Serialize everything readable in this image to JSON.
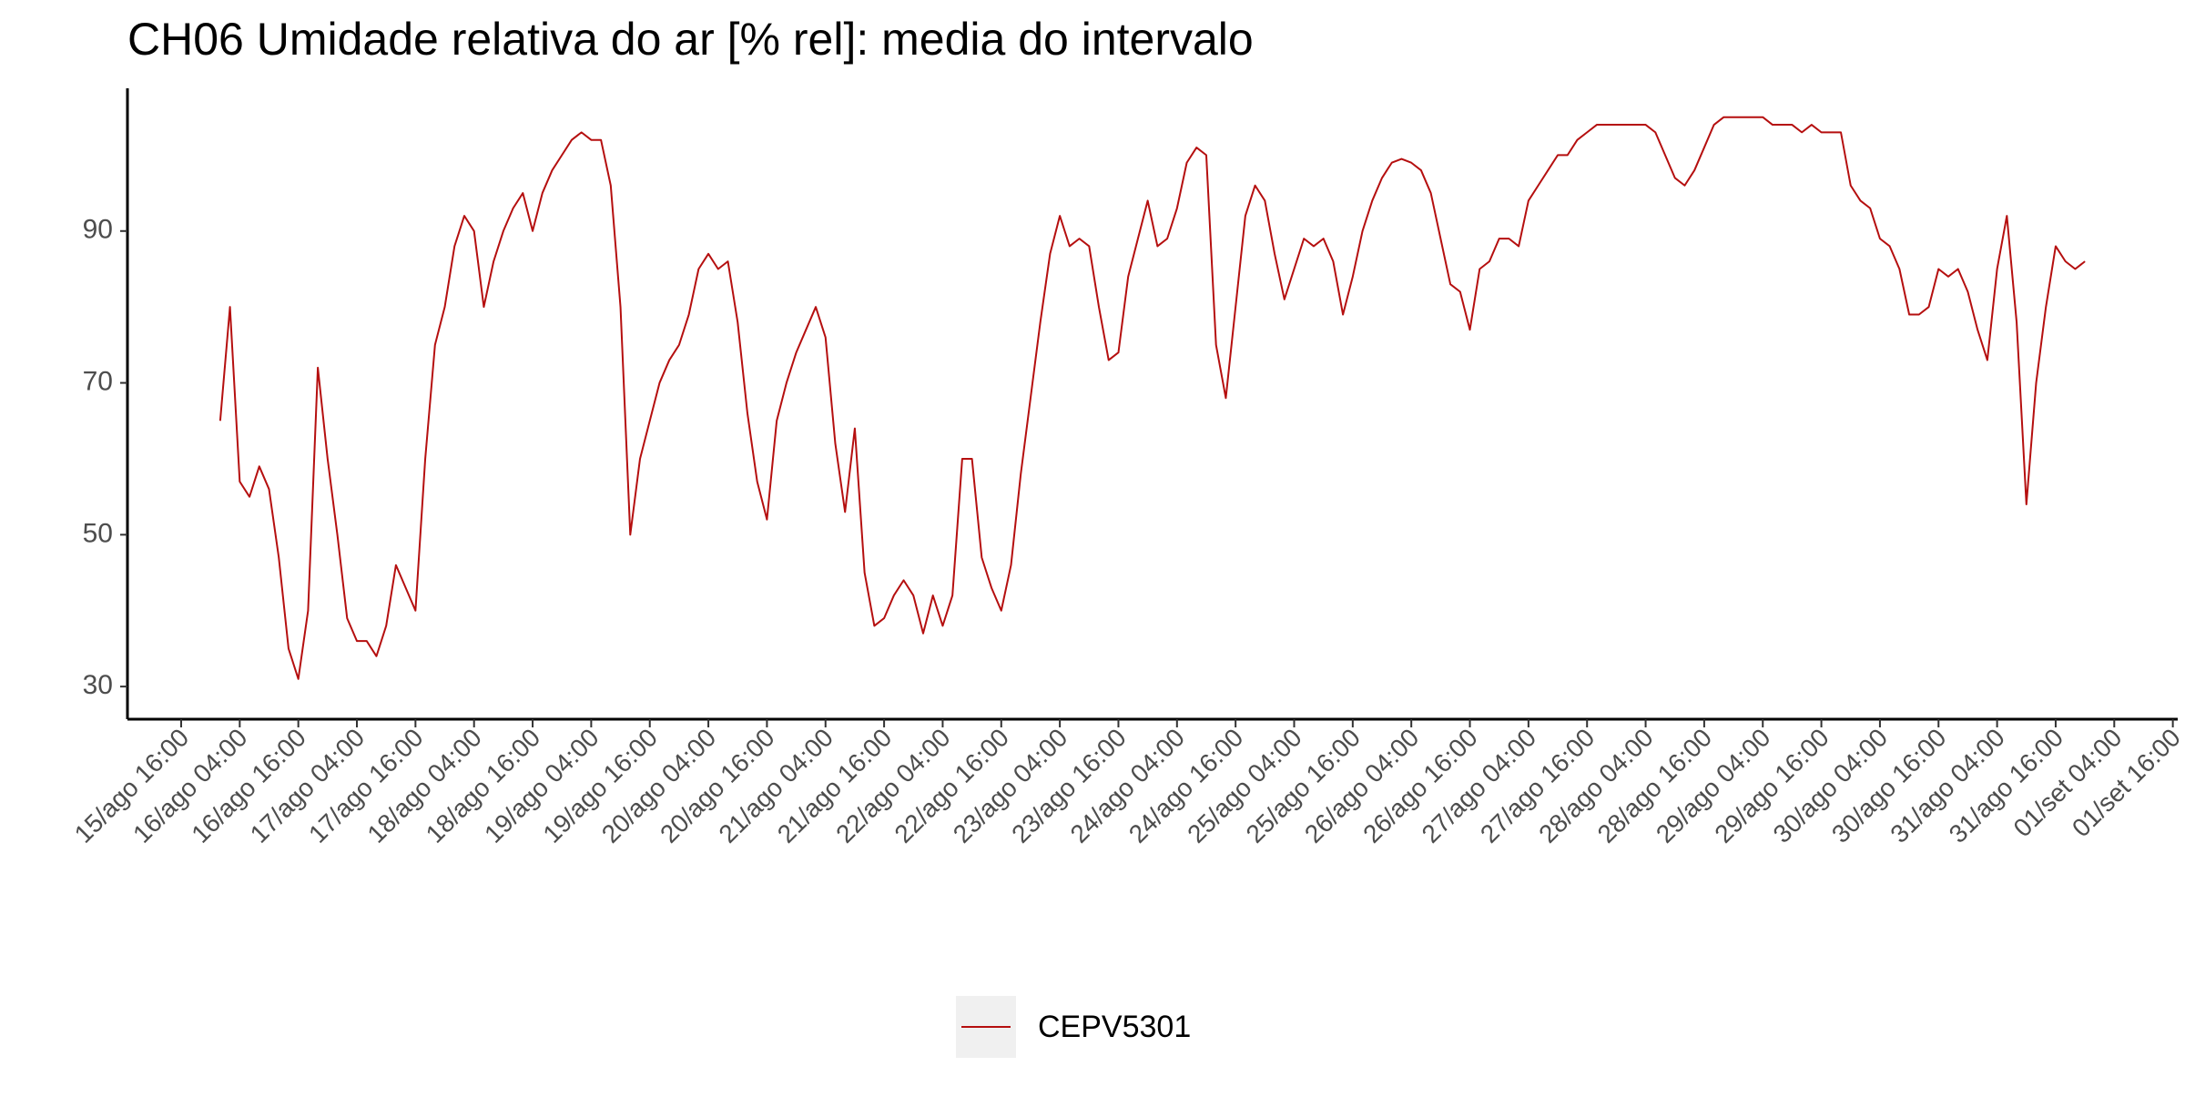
{
  "chart_data": {
    "type": "line",
    "title": "CH06 Umidade relativa do ar [% rel]: media do intervalo",
    "x": [
      "16/ago 00:00",
      "16/ago 02:00",
      "16/ago 04:00",
      "16/ago 06:00",
      "16/ago 08:00",
      "16/ago 10:00",
      "16/ago 12:00",
      "16/ago 14:00",
      "16/ago 16:00",
      "16/ago 18:00",
      "16/ago 20:00",
      "16/ago 22:00",
      "17/ago 00:00",
      "17/ago 02:00",
      "17/ago 04:00",
      "17/ago 06:00",
      "17/ago 08:00",
      "17/ago 10:00",
      "17/ago 12:00",
      "17/ago 14:00",
      "17/ago 16:00",
      "17/ago 18:00",
      "17/ago 20:00",
      "17/ago 22:00",
      "18/ago 00:00",
      "18/ago 02:00",
      "18/ago 04:00",
      "18/ago 06:00",
      "18/ago 08:00",
      "18/ago 10:00",
      "18/ago 12:00",
      "18/ago 14:00",
      "18/ago 16:00",
      "18/ago 18:00",
      "18/ago 20:00",
      "18/ago 22:00",
      "19/ago 00:00",
      "19/ago 02:00",
      "19/ago 04:00",
      "19/ago 06:00",
      "19/ago 08:00",
      "19/ago 10:00",
      "19/ago 12:00",
      "19/ago 14:00",
      "19/ago 16:00",
      "19/ago 18:00",
      "19/ago 20:00",
      "19/ago 22:00",
      "20/ago 00:00",
      "20/ago 02:00",
      "20/ago 04:00",
      "20/ago 06:00",
      "20/ago 08:00",
      "20/ago 10:00",
      "20/ago 12:00",
      "20/ago 14:00",
      "20/ago 16:00",
      "20/ago 18:00",
      "20/ago 20:00",
      "20/ago 22:00",
      "21/ago 00:00",
      "21/ago 02:00",
      "21/ago 04:00",
      "21/ago 06:00",
      "21/ago 08:00",
      "21/ago 10:00",
      "21/ago 12:00",
      "21/ago 14:00",
      "21/ago 16:00",
      "21/ago 18:00",
      "21/ago 20:00",
      "21/ago 22:00",
      "22/ago 00:00",
      "22/ago 02:00",
      "22/ago 04:00",
      "22/ago 06:00",
      "22/ago 08:00",
      "22/ago 10:00",
      "22/ago 12:00",
      "22/ago 14:00",
      "22/ago 16:00",
      "22/ago 18:00",
      "22/ago 20:00",
      "22/ago 22:00",
      "23/ago 00:00",
      "23/ago 02:00",
      "23/ago 04:00",
      "23/ago 06:00",
      "23/ago 08:00",
      "23/ago 10:00",
      "23/ago 12:00",
      "23/ago 14:00",
      "23/ago 16:00",
      "23/ago 18:00",
      "23/ago 20:00",
      "23/ago 22:00",
      "24/ago 00:00",
      "24/ago 02:00",
      "24/ago 04:00",
      "24/ago 06:00",
      "24/ago 08:00",
      "24/ago 10:00",
      "24/ago 12:00",
      "24/ago 14:00",
      "24/ago 16:00",
      "24/ago 18:00",
      "24/ago 20:00",
      "24/ago 22:00",
      "25/ago 00:00",
      "25/ago 02:00",
      "25/ago 04:00",
      "25/ago 06:00",
      "25/ago 08:00",
      "25/ago 10:00",
      "25/ago 12:00",
      "25/ago 14:00",
      "25/ago 16:00",
      "25/ago 18:00",
      "25/ago 20:00",
      "25/ago 22:00",
      "26/ago 00:00",
      "26/ago 02:00",
      "26/ago 04:00",
      "26/ago 06:00",
      "26/ago 08:00",
      "26/ago 10:00",
      "26/ago 12:00",
      "26/ago 14:00",
      "26/ago 16:00",
      "26/ago 18:00",
      "26/ago 20:00",
      "26/ago 22:00",
      "27/ago 00:00",
      "27/ago 02:00",
      "27/ago 04:00",
      "27/ago 06:00",
      "27/ago 08:00",
      "27/ago 10:00",
      "27/ago 12:00",
      "27/ago 14:00",
      "27/ago 16:00",
      "27/ago 18:00",
      "27/ago 20:00",
      "27/ago 22:00",
      "28/ago 00:00",
      "28/ago 02:00",
      "28/ago 04:00",
      "28/ago 06:00",
      "28/ago 08:00",
      "28/ago 10:00",
      "28/ago 12:00",
      "28/ago 14:00",
      "28/ago 16:00",
      "28/ago 18:00",
      "28/ago 20:00",
      "28/ago 22:00",
      "29/ago 00:00",
      "29/ago 02:00",
      "29/ago 04:00",
      "29/ago 06:00",
      "29/ago 08:00",
      "29/ago 10:00",
      "29/ago 12:00",
      "29/ago 14:00",
      "29/ago 16:00",
      "29/ago 18:00",
      "29/ago 20:00",
      "29/ago 22:00",
      "30/ago 00:00",
      "30/ago 02:00",
      "30/ago 04:00",
      "30/ago 06:00",
      "30/ago 08:00",
      "30/ago 10:00",
      "30/ago 12:00",
      "30/ago 14:00",
      "30/ago 16:00",
      "30/ago 18:00",
      "30/ago 20:00",
      "30/ago 22:00",
      "31/ago 00:00",
      "31/ago 02:00",
      "31/ago 04:00",
      "31/ago 06:00",
      "31/ago 08:00",
      "31/ago 10:00",
      "31/ago 12:00",
      "31/ago 14:00",
      "31/ago 16:00",
      "31/ago 18:00",
      "31/ago 20:00",
      "31/ago 22:00"
    ],
    "series": [
      {
        "name": "CEPV5301",
        "color": "#b50f0f",
        "values": [
          65,
          80,
          57,
          55,
          59,
          56,
          47,
          35,
          31,
          40,
          72,
          60,
          50,
          39,
          36,
          36,
          34,
          38,
          46,
          43,
          40,
          60,
          75,
          80,
          88,
          92,
          90,
          80,
          86,
          90,
          93,
          95,
          90,
          95,
          98,
          100,
          102,
          103,
          102,
          102,
          96,
          80,
          50,
          60,
          65,
          70,
          73,
          75,
          79,
          85,
          87,
          85,
          86,
          78,
          66,
          57,
          52,
          65,
          70,
          74,
          77,
          80,
          76,
          62,
          53,
          64,
          45,
          38,
          39,
          42,
          44,
          42,
          37,
          42,
          38,
          42,
          60,
          60,
          47,
          43,
          40,
          46,
          58,
          68,
          78,
          87,
          92,
          88,
          89,
          88,
          80,
          73,
          74,
          84,
          89,
          94,
          88,
          89,
          93,
          99,
          101,
          100,
          75,
          68,
          80,
          92,
          96,
          94,
          87,
          81,
          85,
          89,
          88,
          89,
          86,
          79,
          84,
          90,
          94,
          97,
          99,
          99.5,
          99,
          98,
          95,
          89,
          83,
          82,
          77,
          85,
          86,
          89,
          89,
          88,
          94,
          96,
          98,
          100,
          100,
          102,
          103,
          104,
          104,
          104,
          104,
          104,
          104,
          103,
          100,
          97,
          96,
          98,
          101,
          104,
          105,
          105,
          105,
          105,
          105,
          104,
          104,
          104,
          103,
          104,
          103,
          103,
          103,
          96,
          94,
          93,
          89,
          88,
          85,
          79,
          79,
          80,
          85,
          84,
          85,
          82,
          77,
          73,
          85,
          92,
          78,
          54,
          70,
          80,
          88,
          86,
          85,
          86
        ]
      }
    ],
    "xlim": [
      "15/ago 05:00",
      "01/set 17:00"
    ],
    "xticks": [
      "15/ago 16:00",
      "16/ago 04:00",
      "16/ago 16:00",
      "17/ago 04:00",
      "17/ago 16:00",
      "18/ago 04:00",
      "18/ago 16:00",
      "19/ago 04:00",
      "19/ago 16:00",
      "20/ago 04:00",
      "20/ago 16:00",
      "21/ago 04:00",
      "21/ago 16:00",
      "22/ago 04:00",
      "22/ago 16:00",
      "23/ago 04:00",
      "23/ago 16:00",
      "24/ago 04:00",
      "24/ago 16:00",
      "25/ago 04:00",
      "25/ago 16:00",
      "26/ago 04:00",
      "26/ago 16:00",
      "27/ago 04:00",
      "27/ago 16:00",
      "28/ago 04:00",
      "28/ago 16:00",
      "29/ago 04:00",
      "29/ago 16:00",
      "30/ago 04:00",
      "30/ago 16:00",
      "31/ago 04:00",
      "31/ago 16:00",
      "01/set 04:00",
      "01/set 16:00"
    ],
    "ylim": [
      25.7,
      108.8
    ],
    "yticks": [
      30,
      50,
      70,
      90
    ],
    "grid": false,
    "legend": "bottom"
  }
}
